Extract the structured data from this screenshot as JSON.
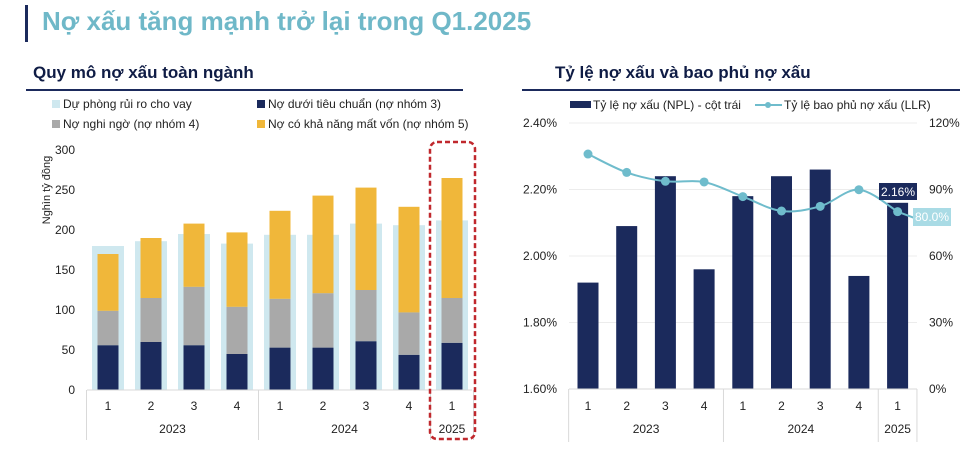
{
  "page": {
    "title": "Nợ xấu tăng mạnh trở lại trong Q1.2025",
    "accent_color": "#1b2a5c",
    "title_color": "#6fb8c8"
  },
  "chart_data": [
    {
      "type": "bar",
      "stacked": true,
      "title": "Quy mô nợ xấu toàn ngành",
      "ylabel": "Nghìn tỷ đồng",
      "ylim": [
        0,
        300
      ],
      "yticks": [
        "0",
        "50",
        "100",
        "150",
        "200",
        "250",
        "300"
      ],
      "grid": false,
      "legend_position": "top",
      "categories": [
        "1",
        "2",
        "3",
        "4",
        "1",
        "2",
        "3",
        "4",
        "1"
      ],
      "groups": [
        {
          "label": "2023",
          "count": 4
        },
        {
          "label": "2024",
          "count": 4
        },
        {
          "label": "2025",
          "count": 1
        }
      ],
      "highlight_category_index": 8,
      "highlight_color": "#c0282d",
      "background_series": {
        "name": "Dự phòng rủi ro cho vay",
        "color": "#cfe8ef",
        "values": [
          180,
          186,
          195,
          183,
          194,
          194,
          208,
          206,
          212
        ]
      },
      "series": [
        {
          "name": "Nợ dưới tiêu chuẩn (nợ nhóm 3)",
          "color": "#1b2a5c",
          "values": [
            56,
            60,
            56,
            45,
            53,
            53,
            61,
            44,
            59
          ]
        },
        {
          "name": "Nợ nghi ngờ (nợ nhóm 4)",
          "color": "#a9a9a9",
          "values": [
            43,
            55,
            73,
            59,
            61,
            68,
            64,
            53,
            56
          ]
        },
        {
          "name": "Nợ có khả năng mất vốn (nợ nhóm 5)",
          "color": "#f0b73a",
          "values": [
            71,
            75,
            79,
            93,
            110,
            122,
            128,
            132,
            150
          ]
        }
      ]
    },
    {
      "type": "bar+line",
      "title": "Tỷ lệ nợ xấu và bao phủ nợ xấu",
      "grid": true,
      "legend_position": "top",
      "categories": [
        "1",
        "2",
        "3",
        "4",
        "1",
        "2",
        "3",
        "4",
        "1"
      ],
      "groups": [
        {
          "label": "2023",
          "count": 4
        },
        {
          "label": "2024",
          "count": 4
        },
        {
          "label": "2025",
          "count": 1
        }
      ],
      "y_left": {
        "ylim": [
          1.6,
          2.4
        ],
        "ticks": [
          "1.60%",
          "1.80%",
          "2.00%",
          "2.20%",
          "2.40%"
        ]
      },
      "y_right": {
        "ylim": [
          0,
          120
        ],
        "ticks": [
          "0%",
          "30%",
          "60%",
          "90%",
          "120%"
        ]
      },
      "bar_series": {
        "name": "Tỷ lệ nợ xấu (NPL) - cột trái",
        "color": "#1b2a5c",
        "axis": "left",
        "values": [
          1.92,
          2.09,
          2.24,
          1.96,
          2.18,
          2.24,
          2.26,
          1.94,
          2.16
        ]
      },
      "line_series": {
        "name": "Tỷ lệ bao phủ nợ xấu (LLR)",
        "color": "#6fbccc",
        "axis": "right",
        "values": [
          106,
          97.7,
          93.7,
          93.4,
          86.8,
          80.3,
          82.4,
          89.9,
          80.0
        ]
      },
      "annotations": [
        {
          "text": "2.16%",
          "series": "bar",
          "index": 8,
          "bg": "#1b2a5c",
          "fg": "#ffffff"
        },
        {
          "text": "80.0%",
          "series": "line",
          "index": 8,
          "bg": "#a9dbe5",
          "fg": "#ffffff"
        }
      ]
    }
  ]
}
